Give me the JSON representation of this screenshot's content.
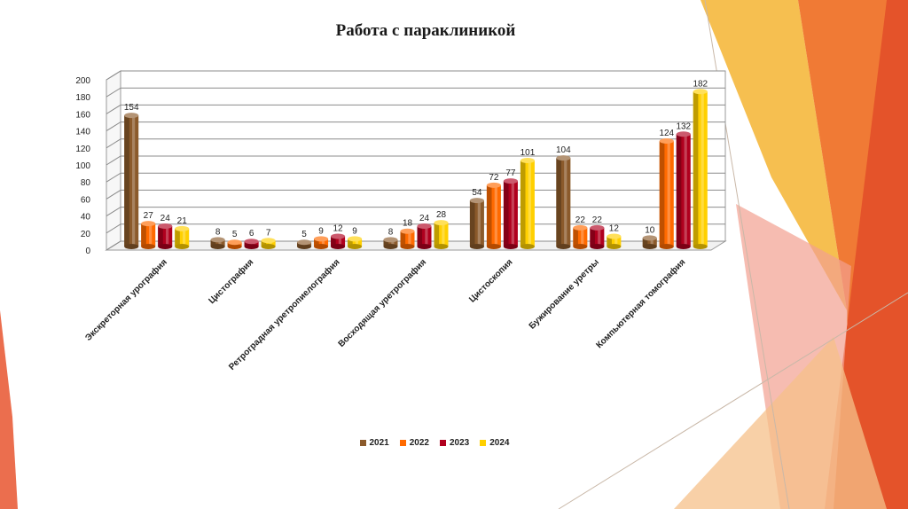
{
  "chart_data": {
    "type": "bar",
    "title": "Работа с параклиникой",
    "categories": [
      "Экскреторная урография",
      "Цистография",
      "Ретроградная уретропиелография",
      "Восходящая уретрография",
      "Цистоскопия",
      "Бужирование уретры",
      "Компьютерная томография"
    ],
    "series": [
      {
        "name": "2021",
        "color": "#8B5A2B",
        "values": [
          154,
          8,
          5,
          8,
          54,
          104,
          10
        ]
      },
      {
        "name": "2022",
        "color": "#FF6A00",
        "values": [
          27,
          5,
          9,
          18,
          72,
          22,
          124
        ]
      },
      {
        "name": "2023",
        "color": "#B0001E",
        "values": [
          24,
          6,
          12,
          24,
          77,
          22,
          132
        ]
      },
      {
        "name": "2024",
        "color": "#FFD000",
        "values": [
          21,
          7,
          9,
          28,
          101,
          12,
          182
        ]
      }
    ],
    "yticks": [
      0,
      20,
      40,
      60,
      80,
      100,
      120,
      140,
      160,
      180,
      200
    ],
    "ylim": [
      0,
      200
    ],
    "xlabel": "",
    "ylabel": "",
    "grid": true,
    "legend_position": "bottom"
  }
}
